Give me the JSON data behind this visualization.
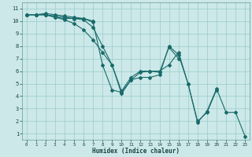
{
  "xlabel": "Humidex (Indice chaleur)",
  "ylabel": "",
  "background_color": "#cce8e8",
  "grid_color": "#99cccc",
  "line_color": "#1a6b6b",
  "series": {
    "line1": {
      "x": [
        0,
        1,
        2,
        3,
        4,
        5,
        6,
        7
      ],
      "y": [
        10.5,
        10.5,
        10.5,
        10.3,
        10.2,
        10.2,
        10.2,
        10.0
      ]
    },
    "line2": {
      "x": [
        0,
        1,
        2,
        3,
        4,
        5,
        6,
        7,
        8,
        9,
        10,
        11,
        12,
        13,
        14,
        15,
        16
      ],
      "y": [
        10.5,
        10.5,
        10.6,
        10.5,
        10.4,
        10.3,
        10.2,
        9.9,
        6.5,
        4.5,
        4.3,
        5.3,
        5.9,
        6.0,
        5.9,
        7.9,
        7.0
      ]
    },
    "line3": {
      "x": [
        0,
        1,
        2,
        3,
        4,
        5,
        6,
        7,
        8,
        9,
        10,
        11,
        12,
        13,
        14,
        15,
        16,
        17,
        18,
        19,
        20
      ],
      "y": [
        10.5,
        10.5,
        10.5,
        10.4,
        10.3,
        10.2,
        10.1,
        9.5,
        8.0,
        6.5,
        4.4,
        5.5,
        6.0,
        6.0,
        6.0,
        6.5,
        7.5,
        5.0,
        2.0,
        2.7,
        4.5
      ]
    },
    "line4": {
      "x": [
        0,
        1,
        2,
        3,
        4,
        5,
        6,
        7,
        8,
        9,
        10,
        11,
        12,
        13,
        14,
        15,
        16,
        17,
        18,
        19,
        20,
        21,
        22,
        23
      ],
      "y": [
        10.5,
        10.5,
        10.5,
        10.3,
        10.1,
        9.8,
        9.3,
        8.5,
        7.5,
        6.5,
        4.2,
        5.3,
        5.5,
        5.5,
        5.7,
        8.0,
        7.3,
        5.0,
        1.9,
        2.8,
        4.6,
        2.7,
        2.7,
        0.8
      ]
    }
  },
  "xlim": [
    -0.5,
    23.5
  ],
  "ylim": [
    0.5,
    11.5
  ],
  "xticks": [
    0,
    1,
    2,
    3,
    4,
    5,
    6,
    7,
    8,
    9,
    10,
    11,
    12,
    13,
    14,
    15,
    16,
    17,
    18,
    19,
    20,
    21,
    22,
    23
  ],
  "yticks": [
    1,
    2,
    3,
    4,
    5,
    6,
    7,
    8,
    9,
    10,
    11
  ],
  "xtick_fontsize": 4.2,
  "ytick_fontsize": 5.0,
  "xlabel_fontsize": 5.5,
  "line_width": 0.8,
  "marker_size": 2.0
}
